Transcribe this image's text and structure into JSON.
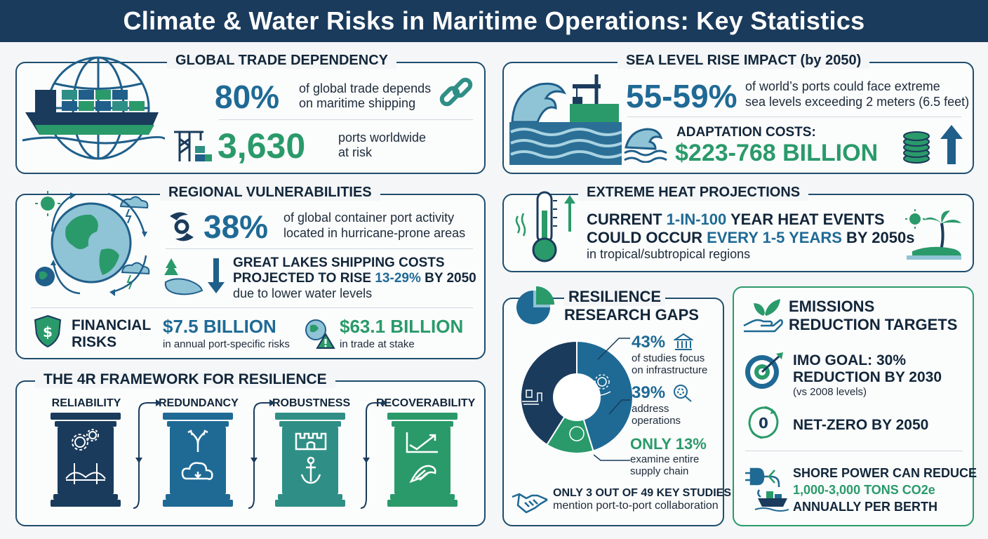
{
  "title": "Climate & Water Risks in Maritime Operations: Key Statistics",
  "colors": {
    "navy": "#1a3b5c",
    "blue": "#1f6a95",
    "green": "#2a9a6a",
    "teal": "#2f8f86"
  },
  "trade": {
    "heading": "GLOBAL TRADE DEPENDENCY",
    "stat1": "80%",
    "stat1_text_1": "of global trade depends",
    "stat1_text_2": "on maritime shipping",
    "stat2": "3,630",
    "stat2_text_1": "ports worldwide",
    "stat2_text_2": "at risk"
  },
  "sea_level": {
    "heading": "SEA LEVEL RISE IMPACT (by 2050)",
    "stat": "55-59%",
    "text_1": "of world’s ports could face extreme",
    "text_2": "sea levels exceeding 2 meters (6.5 feet)",
    "cost_label": "ADAPTATION COSTS:",
    "cost_value": "$223-768 BILLION"
  },
  "regional": {
    "heading": "REGIONAL VULNERABILITIES",
    "stat": "38%",
    "text_1": "of global container port activity",
    "text_2": "located in hurricane-prone areas",
    "lakes_1": "GREAT LAKES SHIPPING COSTS",
    "lakes_2a": "PROJECTED TO RISE ",
    "lakes_2b": "13-29%",
    "lakes_2c": " BY 2050",
    "lakes_3": "due to lower water levels",
    "fin_label_1": "FINANCIAL",
    "fin_label_2": "RISKS",
    "fin_value_1": "$7.5 BILLION",
    "fin_text_1": "in annual port-specific risks",
    "fin_value_2": "$63.1 BILLION",
    "fin_text_2": "in trade at stake"
  },
  "heat": {
    "heading": "EXTREME HEAT PROJECTIONS",
    "line1a": "CURRENT ",
    "line1b": "1-IN-100",
    "line1c": " YEAR HEAT EVENTS",
    "line2a": "COULD OCCUR ",
    "line2b": "EVERY 1-5 YEARS",
    "line2c": " BY 2050s",
    "line3": "in tropical/subtropical regions"
  },
  "framework": {
    "heading": "THE 4R FRAMEWORK FOR RESILIENCE",
    "pillars": [
      "RELIABILITY",
      "REDUNDANCY",
      "ROBUSTNESS",
      "RECOVERABILITY"
    ]
  },
  "research": {
    "heading_1": "RESILIENCE",
    "heading_2": "RESEARCH GAPS",
    "s1": "43%",
    "s1_t1": "of studies focus",
    "s1_t2": "on infrastructure",
    "s2": "39%",
    "s2_t1": "address",
    "s2_t2": "operations",
    "s3": "ONLY 13%",
    "s3_t1": "examine entire",
    "s3_t2": "supply chain",
    "collab_1": "ONLY 3 OUT OF 49 KEY STUDIES",
    "collab_2": "mention port-to-port collaboration",
    "donut_values": [
      43,
      39,
      13
    ]
  },
  "emissions": {
    "heading_1": "EMISSIONS",
    "heading_2": "REDUCTION TARGETS",
    "imo_1": "IMO GOAL: 30%",
    "imo_2": "REDUCTION BY 2030",
    "imo_3": "(vs 2008 levels)",
    "netzero": "NET-ZERO BY 2050",
    "shore_1": "SHORE POWER CAN REDUCE",
    "shore_2": "1,000-3,000 TONS CO2e",
    "shore_3": "ANNUALLY PER BERTH"
  }
}
